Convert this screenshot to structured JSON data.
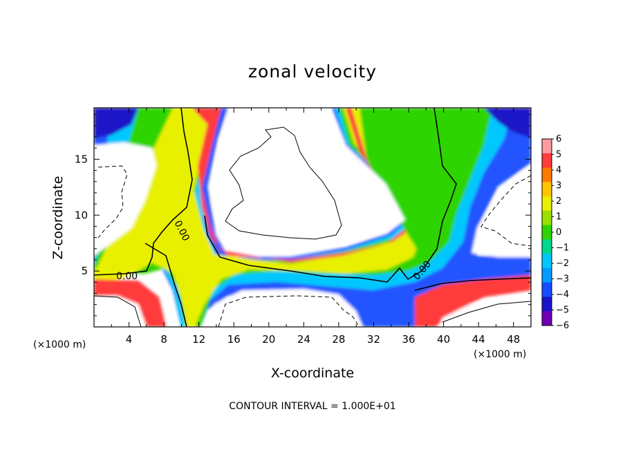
{
  "chart_data": {
    "type": "heatmap",
    "title": "zonal velocity",
    "xlabel": "X-coordinate",
    "ylabel": "Z-coordinate",
    "x_unit_label": "(×1000 m)",
    "x_unit_label_right": "(×1000 m)",
    "xlim": [
      0,
      50
    ],
    "ylim": [
      0,
      19.6
    ],
    "x_ticks": [
      4,
      8,
      12,
      16,
      20,
      24,
      28,
      32,
      36,
      40,
      44,
      48
    ],
    "y_ticks": [
      5,
      10,
      15
    ],
    "colorbar": {
      "range": [
        -6,
        6
      ],
      "ticks": [
        6,
        5,
        4,
        3,
        2,
        1,
        0,
        -1,
        -2,
        -3,
        -4,
        -5,
        -6
      ],
      "tick_labels": [
        "6",
        "5",
        "4",
        "3",
        "2",
        "1",
        "0",
        "−1",
        "−2",
        "−3",
        "−4",
        "−5",
        "−6"
      ],
      "colors": [
        "#ff9aa0",
        "#ff3b3b",
        "#ff7a00",
        "#ffc400",
        "#e8f000",
        "#9ae000",
        "#2fd400",
        "#00d88c",
        "#00c8ff",
        "#009cff",
        "#1a4cff",
        "#1a14c8",
        "#7000b4"
      ]
    },
    "contour_labels": [
      "0.00",
      "0.00",
      "0.00"
    ],
    "footer": "CONTOUR INTERVAL = 1.000E+01"
  }
}
